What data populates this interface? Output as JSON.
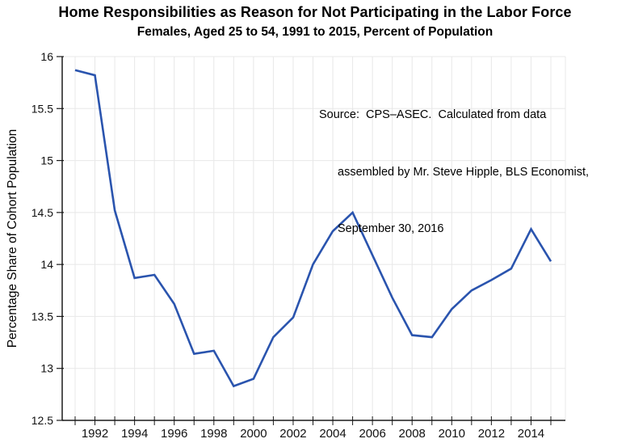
{
  "chart_data": {
    "type": "line",
    "title": "Home Responsibilities as Reason for Not Participating in the Labor Force",
    "subtitle": "Females, Aged 25 to 54, 1991 to 2015, Percent of Population",
    "ylabel": "Percentage Share of Cohort Population",
    "xlabel": "",
    "source_note": {
      "lines": [
        "Source:  CPS–ASEC.  Calculated from data",
        "assembled by Mr. Steve Hipple, BLS Economist,",
        "September 30, 2016"
      ]
    },
    "x": [
      1991,
      1992,
      1993,
      1994,
      1995,
      1996,
      1997,
      1998,
      1999,
      2000,
      2001,
      2002,
      2003,
      2004,
      2005,
      2006,
      2007,
      2008,
      2009,
      2010,
      2011,
      2012,
      2013,
      2014,
      2015
    ],
    "values": [
      15.87,
      15.82,
      14.52,
      13.87,
      13.9,
      13.62,
      13.14,
      13.17,
      12.83,
      12.9,
      13.3,
      13.49,
      14.0,
      14.32,
      14.5,
      14.09,
      13.68,
      13.32,
      13.3,
      13.57,
      13.75,
      13.85,
      13.96,
      14.34,
      14.03
    ],
    "ylim": [
      12.5,
      16
    ],
    "ytick_interval": 0.5,
    "ytick_labels": [
      "12.5",
      "13",
      "13.5",
      "14",
      "14.5",
      "15",
      "15.5",
      "16"
    ],
    "xtick_labeled": [
      1992,
      1994,
      1996,
      1998,
      2000,
      2002,
      2004,
      2006,
      2008,
      2010,
      2012,
      2014
    ],
    "grid": true,
    "legend": "none",
    "line_color": "#2a54ae",
    "grid_color": "#e8e8e8",
    "axis_color": "#1a1a1a",
    "text_color": "#000000"
  }
}
